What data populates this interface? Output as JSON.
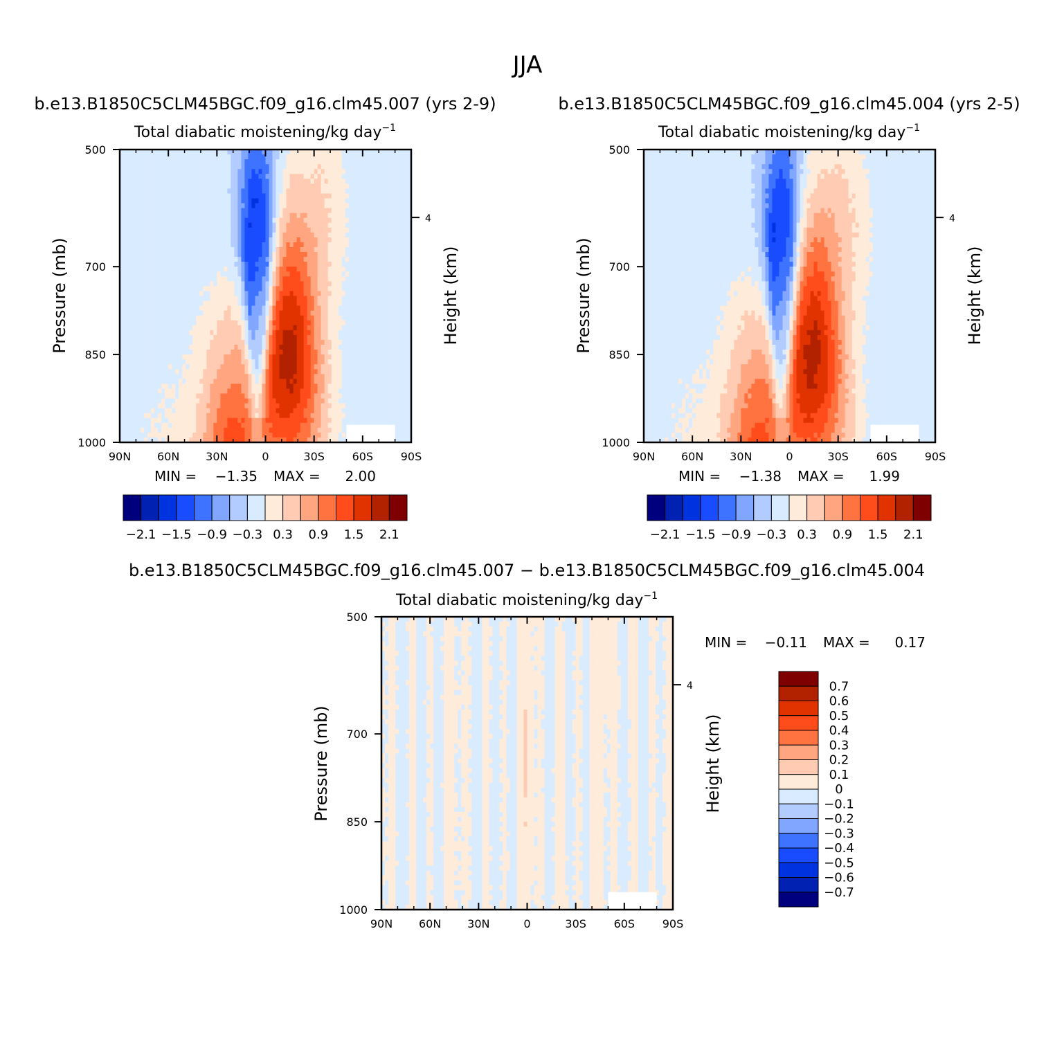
{
  "figure_title": "JJA",
  "chart_data": [
    {
      "type": "heatmap",
      "id": "p1",
      "case_label": "b.e13.B1850C5CLM45BGC.f09_g16.clm45.007 (yrs 2-9)",
      "title": "Total diabatic moistening/kg day",
      "title_sup": "−1",
      "ylabel": "Pressure (mb)",
      "ylabel_right": "Height (km)",
      "xticks": [
        "90N",
        "60N",
        "30N",
        "0",
        "30S",
        "60S",
        "90S"
      ],
      "x_values": [
        90,
        60,
        30,
        0,
        -30,
        -60,
        -90
      ],
      "yticks": [
        "500",
        "700",
        "850",
        "1000"
      ],
      "y_values": [
        500,
        700,
        850,
        1000
      ],
      "right_ticks": [
        "4"
      ],
      "right_tick_pressure": 616,
      "min_label": "MIN =",
      "min_value": "−1.35",
      "max_label": "MAX =",
      "max_value": "2.00",
      "colorbar_labels": [
        "−2.1",
        "−1.5",
        "−0.9",
        "−0.3",
        "0.3",
        "0.9",
        "1.5",
        "2.1"
      ],
      "field": {
        "blue_core_lat": 5,
        "blue_core_min": -1.35,
        "red_core_lat": -14,
        "red_core_max": 2.0,
        "sh_dry_band_lat": -58,
        "nh_dry_band_lat": 50
      }
    },
    {
      "type": "heatmap",
      "id": "p2",
      "case_label": "b.e13.B1850C5CLM45BGC.f09_g16.clm45.004 (yrs 2-5)",
      "title": "Total diabatic moistening/kg day",
      "title_sup": "−1",
      "ylabel": "Pressure (mb)",
      "ylabel_right": "Height (km)",
      "xticks": [
        "90N",
        "60N",
        "30N",
        "0",
        "30S",
        "60S",
        "90S"
      ],
      "x_values": [
        90,
        60,
        30,
        0,
        -30,
        -60,
        -90
      ],
      "yticks": [
        "500",
        "700",
        "850",
        "1000"
      ],
      "y_values": [
        500,
        700,
        850,
        1000
      ],
      "right_ticks": [
        "4"
      ],
      "right_tick_pressure": 616,
      "min_label": "MIN =",
      "min_value": "−1.38",
      "max_label": "MAX =",
      "max_value": "1.99",
      "colorbar_labels": [
        "−2.1",
        "−1.5",
        "−0.9",
        "−0.3",
        "0.3",
        "0.9",
        "1.5",
        "2.1"
      ],
      "field": {
        "blue_core_lat": 5,
        "blue_core_min": -1.38,
        "red_core_lat": -14,
        "red_core_max": 1.99,
        "sh_dry_band_lat": -58,
        "nh_dry_band_lat": 50
      }
    },
    {
      "type": "heatmap",
      "id": "p3",
      "case_label": "b.e13.B1850C5CLM45BGC.f09_g16.clm45.007 − b.e13.B1850C5CLM45BGC.f09_g16.clm45.004",
      "title": "Total diabatic moistening/kg day",
      "title_sup": "−1",
      "ylabel": "Pressure (mb)",
      "ylabel_right": "Height (km)",
      "xticks": [
        "90N",
        "60N",
        "30N",
        "0",
        "30S",
        "60S",
        "90S"
      ],
      "x_values": [
        90,
        60,
        30,
        0,
        -30,
        -60,
        -90
      ],
      "yticks": [
        "500",
        "700",
        "850",
        "1000"
      ],
      "y_values": [
        500,
        700,
        850,
        1000
      ],
      "right_ticks": [
        "4"
      ],
      "right_tick_pressure": 616,
      "min_label": "MIN =",
      "min_value": "−0.11",
      "max_label": "MAX =",
      "max_value": "0.17",
      "colorbar_labels": [
        "0.7",
        "0.6",
        "0.5",
        "0.4",
        "0.3",
        "0.2",
        "0.1",
        "0",
        "−0.1",
        "−0.2",
        "−0.3",
        "−0.4",
        "−0.5",
        "−0.6",
        "−0.7"
      ],
      "field": {
        "positive_band_lat": 0,
        "positive_peak": 0.17,
        "negative_min": -0.11
      }
    }
  ],
  "colors": {
    "scale": [
      "#00007f",
      "#0021b2",
      "#0033e0",
      "#1a4cff",
      "#3d73ff",
      "#80a6ff",
      "#b3ccff",
      "#d9ebff",
      "#ffebd9",
      "#ffccb3",
      "#ffa680",
      "#ff7340",
      "#ff4c1a",
      "#e03300",
      "#b22100",
      "#7f0000"
    ]
  }
}
